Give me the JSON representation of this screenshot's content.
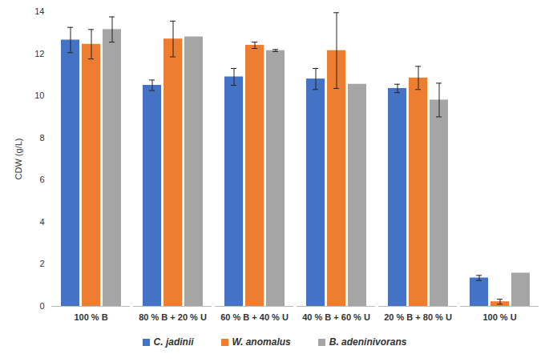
{
  "chart_data": {
    "type": "bar",
    "y_label": "CDW (g/L)",
    "categories": [
      "100 % B",
      "80 % B + 20 % U",
      "60 % B + 40 % U",
      "40 % B + 60 % U",
      "20 % B + 80 % U",
      "100 % U"
    ],
    "series": [
      {
        "name": "C. jadinii",
        "color": "#4472c4",
        "values": [
          12.65,
          10.5,
          10.9,
          10.8,
          10.35,
          1.35
        ],
        "errors": [
          0.6,
          0.25,
          0.4,
          0.5,
          0.2,
          0.12
        ]
      },
      {
        "name": "W. anomalus",
        "color": "#ed7d31",
        "values": [
          12.45,
          12.7,
          12.4,
          12.15,
          10.85,
          0.22
        ],
        "errors": [
          0.7,
          0.85,
          0.15,
          1.8,
          0.55,
          0.12
        ]
      },
      {
        "name": "B. adeninivorans",
        "color": "#a5a5a5",
        "values": [
          13.15,
          12.8,
          12.15,
          10.55,
          9.8,
          1.58
        ],
        "errors": [
          0.6,
          null,
          0.05,
          null,
          0.8,
          null
        ]
      }
    ],
    "ylim": [
      0,
      14
    ],
    "yticks": [
      0,
      2,
      4,
      6,
      8,
      10,
      12,
      14
    ],
    "grid": false,
    "legend": "bottom"
  }
}
